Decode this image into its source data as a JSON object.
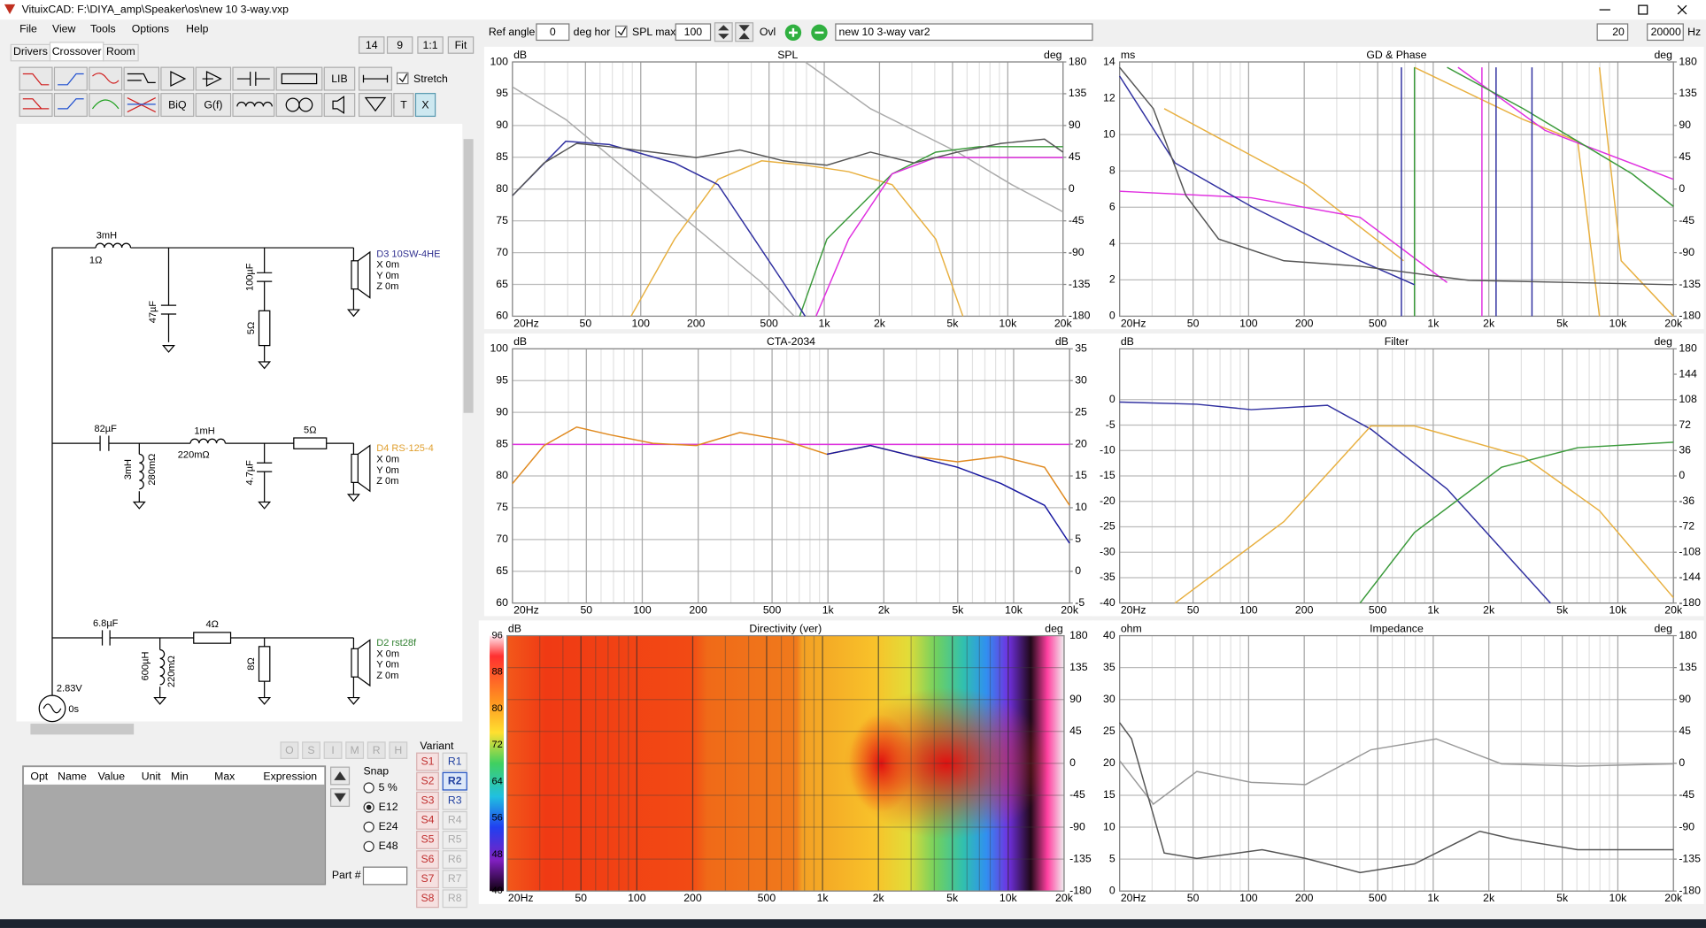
{
  "window": {
    "title": "VituixCAD: F:\\DIYA_amp\\Speaker\\os\\new 10 3-way.vxp"
  },
  "menu": [
    "File",
    "View",
    "Tools",
    "Options",
    "Help"
  ],
  "zoom_buttons": [
    "14",
    "9",
    "1:1",
    "Fit"
  ],
  "tabs": [
    "Drivers",
    "Crossover",
    "Room"
  ],
  "toolbar": {
    "text_buttons": [
      "LIB",
      "BiQ",
      "G(f)",
      "T",
      "X"
    ],
    "stretch": "Stretch"
  },
  "schematic": {
    "labels": [
      "3mH",
      "1Ω",
      "47µF",
      "100µF",
      "5Ω",
      "D3 10SW-4HE",
      "X 0m",
      "Y 0m",
      "Z 0m",
      "82µF",
      "3mH",
      "280mΩ",
      "1mH",
      "220mΩ",
      "4.7µF",
      "5Ω",
      "D4 RS-125-4",
      "X 0m",
      "Y 0m",
      "Z 0m",
      "6.8µF",
      "600µH",
      "220mΩ",
      "4Ω",
      "8Ω",
      "D2 rst28f",
      "X 0m",
      "Y 0m",
      "Z 0m",
      "2.83V",
      "0s"
    ]
  },
  "state_buttons": [
    "O",
    "S",
    "I",
    "M",
    "R",
    "H"
  ],
  "table": {
    "columns": [
      "Opt",
      "Name",
      "Value",
      "Unit",
      "Min",
      "Max",
      "Expression"
    ]
  },
  "snap": {
    "title": "Snap",
    "options": [
      "5 %",
      "E12",
      "E24",
      "E48"
    ]
  },
  "part_label": "Part #",
  "variant": {
    "title": "Variant",
    "s": [
      "S1",
      "S2",
      "S3",
      "S4",
      "S5",
      "S6",
      "S7",
      "S8"
    ],
    "r": [
      "R1",
      "R2",
      "R3",
      "R4",
      "R5",
      "R6",
      "R7",
      "R8"
    ]
  },
  "chart_toolbar": {
    "ref_angle_label": "Ref angle",
    "ref_angle": "0",
    "deg_hor": "deg hor",
    "spl_max_label": "SPL max",
    "spl_max": "100",
    "ovl": "Ovl",
    "name": "new 10 3-way var2",
    "f_min": "20",
    "f_max": "20000",
    "hz": "Hz"
  },
  "charts": [
    {
      "title": "SPL",
      "left_unit": "dB",
      "right_unit": "deg",
      "ylim": [
        60,
        100
      ],
      "yticks": [
        100,
        95,
        90,
        85,
        80,
        75,
        70,
        65,
        60
      ],
      "y2lim": [
        -180,
        180
      ],
      "y2ticks": [
        180,
        135,
        90,
        45,
        0,
        -45,
        -90,
        -135,
        -180
      ],
      "xlim": [
        20,
        20000
      ],
      "xticks": [
        {
          "value": 20,
          "label": "20Hz"
        },
        50,
        100,
        200,
        500,
        {
          "value": 1000,
          "label": "1k"
        },
        {
          "value": 2000,
          "label": "2k"
        },
        {
          "value": 5000,
          "label": "5k"
        },
        {
          "value": 10000,
          "label": "10k"
        },
        {
          "value": 20000,
          "label": "20k"
        }
      ]
    },
    {
      "title": "GD & Phase",
      "left_unit": "ms",
      "right_unit": "deg",
      "ylim": [
        0,
        14
      ],
      "yticks": [
        14,
        12,
        10,
        8,
        6,
        4,
        2,
        0
      ],
      "y2lim": [
        -180,
        180
      ],
      "y2ticks": [
        180,
        135,
        90,
        45,
        0,
        -45,
        -90,
        -135,
        -180
      ],
      "xlim": [
        20,
        20000
      ],
      "xticks": [
        {
          "value": 20,
          "label": "20Hz"
        },
        50,
        100,
        200,
        500,
        {
          "value": 1000,
          "label": "1k"
        },
        {
          "value": 2000,
          "label": "2k"
        },
        {
          "value": 5000,
          "label": "5k"
        },
        {
          "value": 10000,
          "label": "10k"
        },
        {
          "value": 20000,
          "label": "20k"
        }
      ]
    },
    {
      "title": "CTA-2034",
      "left_unit": "dB",
      "right_unit": "dB",
      "ylim": [
        60,
        100
      ],
      "yticks": [
        100,
        95,
        90,
        85,
        80,
        75,
        70,
        65,
        60
      ],
      "y2lim": [
        -5,
        35
      ],
      "y2ticks": [
        35,
        30,
        25,
        20,
        15,
        10,
        5,
        0,
        -5
      ],
      "xlim": [
        20,
        20000
      ],
      "xticks": [
        {
          "value": 20,
          "label": "20Hz"
        },
        50,
        100,
        200,
        500,
        {
          "value": 1000,
          "label": "1k"
        },
        {
          "value": 2000,
          "label": "2k"
        },
        {
          "value": 5000,
          "label": "5k"
        },
        {
          "value": 10000,
          "label": "10k"
        },
        {
          "value": 20000,
          "label": "20k"
        }
      ]
    },
    {
      "title": "Filter",
      "left_unit": "dB",
      "right_unit": "deg",
      "ylim": [
        -40,
        10
      ],
      "yticks": [
        0,
        -5,
        -10,
        -15,
        -20,
        -25,
        -30,
        -35,
        -40
      ],
      "y2lim": [
        -180,
        180
      ],
      "y2ticks": [
        180,
        144,
        108,
        72,
        36,
        0,
        -36,
        -72,
        -108,
        -144,
        -180
      ],
      "xlim": [
        20,
        20000
      ],
      "xticks": [
        {
          "value": 20,
          "label": "20Hz"
        },
        50,
        100,
        200,
        500,
        {
          "value": 1000,
          "label": "1k"
        },
        {
          "value": 2000,
          "label": "2k"
        },
        {
          "value": 5000,
          "label": "5k"
        },
        {
          "value": 10000,
          "label": "10k"
        },
        {
          "value": 20000,
          "label": "20k"
        }
      ]
    },
    {
      "title": "Directivity (ver)",
      "left_unit": "dB",
      "right_unit": "deg",
      "colorbar_lim": [
        40,
        96
      ],
      "colorbar_ticks": [
        96,
        88,
        80,
        72,
        64,
        56,
        48,
        40
      ],
      "y2lim": [
        -180,
        180
      ],
      "y2ticks": [
        180,
        135,
        90,
        45,
        0,
        -45,
        -90,
        -135,
        -180
      ],
      "xlim": [
        20,
        20000
      ],
      "xticks": [
        {
          "value": 20,
          "label": "20Hz"
        },
        50,
        100,
        200,
        500,
        {
          "value": 1000,
          "label": "1k"
        },
        {
          "value": 2000,
          "label": "2k"
        },
        {
          "value": 5000,
          "label": "5k"
        },
        {
          "value": 10000,
          "label": "10k"
        },
        {
          "value": 20000,
          "label": "20k"
        }
      ]
    },
    {
      "title": "Impedance",
      "left_unit": "ohm",
      "right_unit": "deg",
      "ylim": [
        0,
        40
      ],
      "yticks": [
        40,
        35,
        30,
        25,
        20,
        15,
        10,
        5,
        0
      ],
      "y2lim": [
        -180,
        180
      ],
      "y2ticks": [
        180,
        135,
        90,
        45,
        0,
        -45,
        -90,
        -135,
        -180
      ],
      "xlim": [
        20,
        20000
      ],
      "xticks": [
        {
          "value": 20,
          "label": "20Hz"
        },
        50,
        100,
        200,
        500,
        {
          "value": 1000,
          "label": "1k"
        },
        {
          "value": 2000,
          "label": "2k"
        },
        {
          "value": 5000,
          "label": "5k"
        },
        {
          "value": 10000,
          "label": "10k"
        },
        {
          "value": 20000,
          "label": "20k"
        }
      ]
    }
  ]
}
